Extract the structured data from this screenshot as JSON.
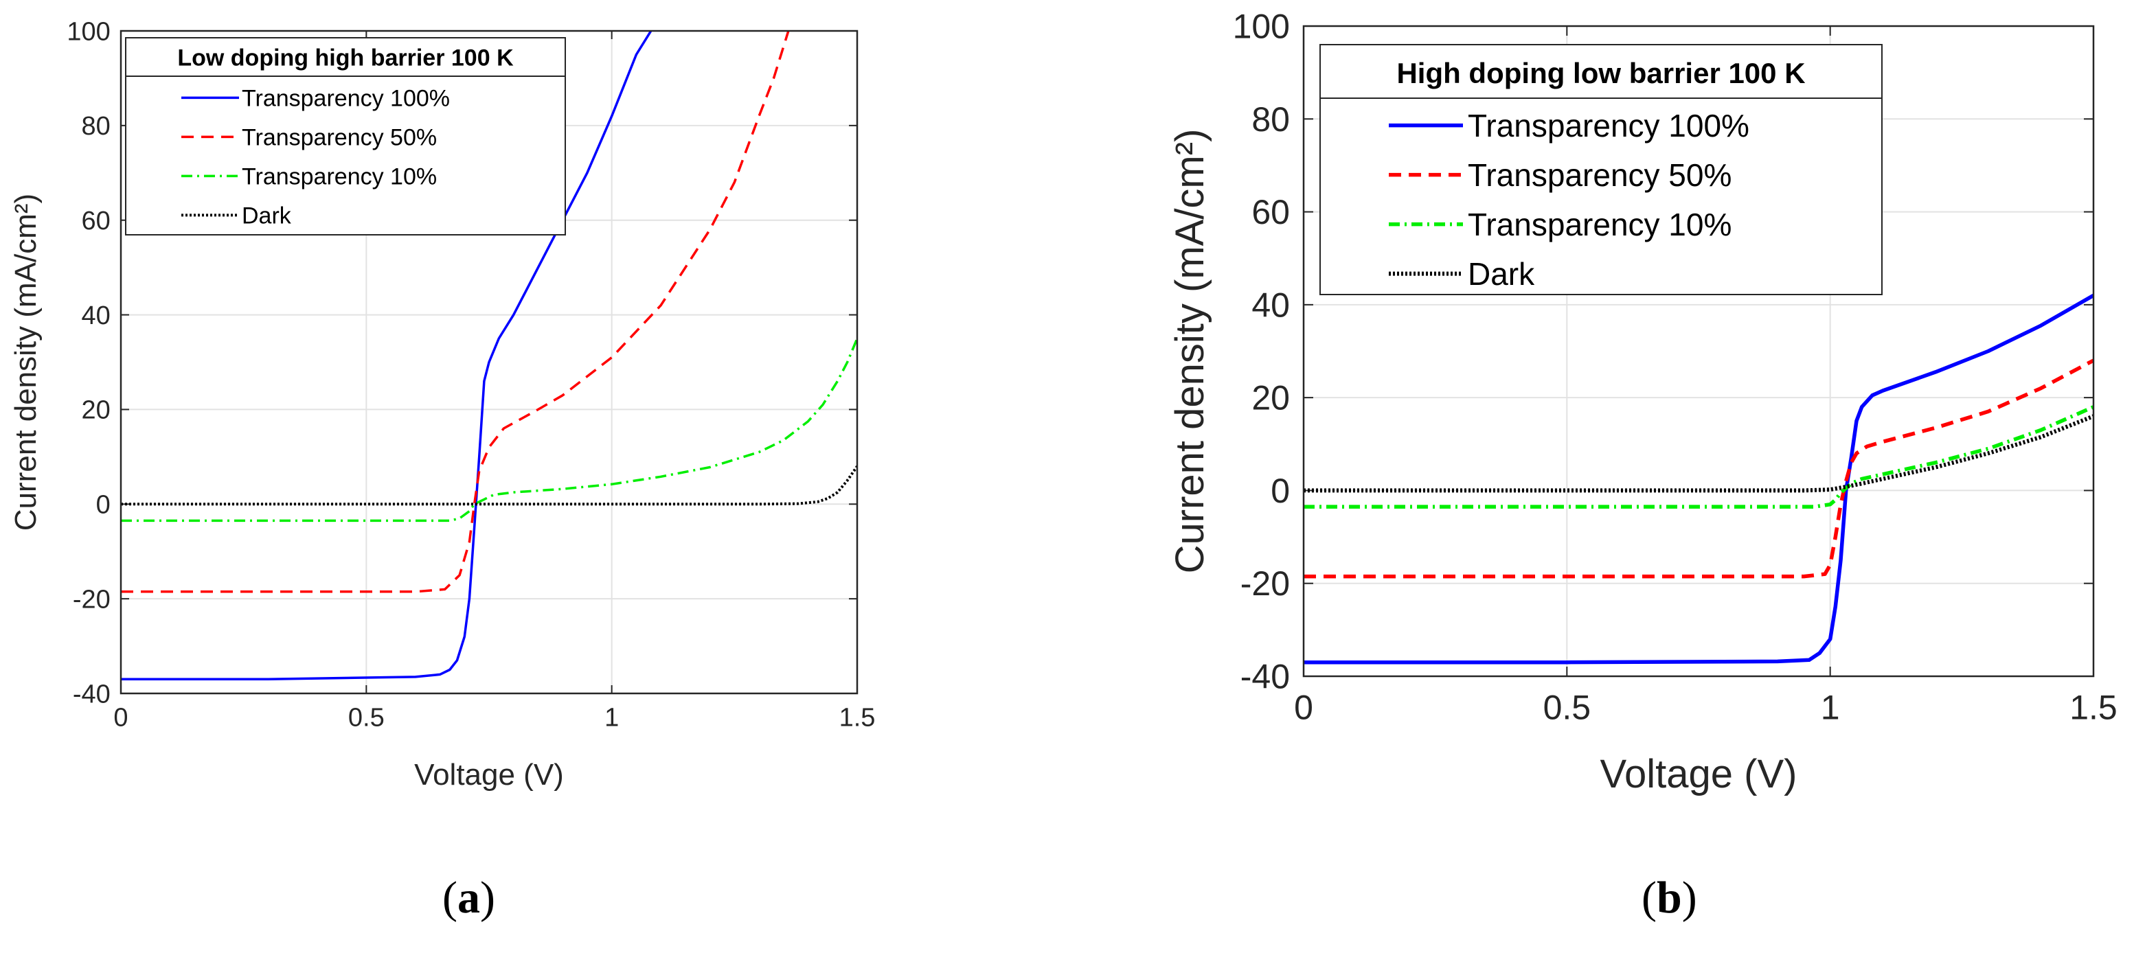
{
  "chart_data": [
    {
      "type": "line",
      "panel_label": "a",
      "xlabel": "Voltage (V)",
      "ylabel": "Current density (mA/cm²)",
      "xlim": [
        0,
        1.5
      ],
      "ylim": [
        -40,
        100
      ],
      "xticks": [
        0,
        0.5,
        1,
        1.5
      ],
      "xtick_labels": [
        "0",
        "0.5",
        "1",
        "1.5"
      ],
      "yticks": [
        -40,
        -20,
        0,
        20,
        40,
        60,
        80,
        100
      ],
      "ytick_labels": [
        "-40",
        "-20",
        "0",
        "20",
        "40",
        "60",
        "80",
        "100"
      ],
      "grid": true,
      "legend_title": "Low doping high barrier 100 K",
      "legend_position": "top-left",
      "series": [
        {
          "name": "Transparency 100%",
          "color": "#0000ff",
          "dash": "solid",
          "x": [
            0,
            0.3,
            0.6,
            0.65,
            0.67,
            0.685,
            0.7,
            0.71,
            0.72,
            0.73,
            0.74,
            0.75,
            0.77,
            0.8,
            0.85,
            0.9,
            0.95,
            1.0,
            1.05,
            1.08
          ],
          "y": [
            -37,
            -37,
            -36.5,
            -36,
            -35,
            -33,
            -28,
            -20,
            -5,
            10,
            26,
            30,
            35,
            40,
            50,
            60,
            70,
            82,
            95,
            100
          ]
        },
        {
          "name": "Transparency 50%",
          "color": "#ff0000",
          "dash": "dashed",
          "x": [
            0,
            0.3,
            0.6,
            0.66,
            0.69,
            0.71,
            0.72,
            0.73,
            0.75,
            0.78,
            0.85,
            0.9,
            1.0,
            1.1,
            1.2,
            1.25,
            1.3,
            1.33,
            1.36
          ],
          "y": [
            -18.5,
            -18.5,
            -18.5,
            -18,
            -15,
            -8,
            0,
            7,
            12,
            16,
            20,
            23,
            31,
            42,
            58,
            68,
            82,
            90,
            100
          ]
        },
        {
          "name": "Transparency 10%",
          "color": "#00ee00",
          "dash": "dashdot",
          "x": [
            0,
            0.3,
            0.6,
            0.67,
            0.69,
            0.71,
            0.72,
            0.74,
            0.76,
            0.8,
            0.9,
            1.0,
            1.1,
            1.2,
            1.3,
            1.35,
            1.4,
            1.43,
            1.46,
            1.48,
            1.5
          ],
          "y": [
            -3.5,
            -3.5,
            -3.5,
            -3.5,
            -3,
            -1.5,
            0,
            1,
            2,
            2.5,
            3.2,
            4.2,
            5.8,
            7.8,
            11,
            13.5,
            17.5,
            21,
            26,
            30,
            35
          ]
        },
        {
          "name": "Dark",
          "color": "#000000",
          "dash": "dotted",
          "x": [
            0,
            0.5,
            1.0,
            1.3,
            1.38,
            1.42,
            1.44,
            1.46,
            1.48,
            1.5
          ],
          "y": [
            0,
            0,
            0,
            0,
            0.1,
            0.5,
            1.2,
            2.5,
            5,
            8
          ]
        }
      ]
    },
    {
      "type": "line",
      "panel_label": "b",
      "xlabel": "Voltage (V)",
      "ylabel": "Current density (mA/cm²)",
      "xlim": [
        0,
        1.5
      ],
      "ylim": [
        -40,
        100
      ],
      "xticks": [
        0,
        0.5,
        1,
        1.5
      ],
      "xtick_labels": [
        "0",
        "0.5",
        "1",
        "1.5"
      ],
      "yticks": [
        -40,
        -20,
        0,
        20,
        40,
        60,
        80,
        100
      ],
      "ytick_labels": [
        "-40",
        "-20",
        "0",
        "20",
        "40",
        "60",
        "80",
        "100"
      ],
      "grid": true,
      "legend_title": "High doping low barrier 100 K",
      "legend_position": "top-left",
      "series": [
        {
          "name": "Transparency 100%",
          "color": "#0000ff",
          "dash": "solid",
          "x": [
            0,
            0.5,
            0.9,
            0.96,
            0.98,
            1.0,
            1.01,
            1.02,
            1.03,
            1.04,
            1.05,
            1.06,
            1.08,
            1.1,
            1.2,
            1.3,
            1.4,
            1.5
          ],
          "y": [
            -37,
            -37,
            -36.8,
            -36.5,
            -35,
            -32,
            -25,
            -15,
            0,
            7,
            15,
            18,
            20.5,
            21.5,
            25.5,
            30,
            35.5,
            42
          ]
        },
        {
          "name": "Transparency 50%",
          "color": "#ff0000",
          "dash": "dashed",
          "x": [
            0,
            0.5,
            0.95,
            0.99,
            1.0,
            1.01,
            1.02,
            1.03,
            1.04,
            1.05,
            1.07,
            1.1,
            1.2,
            1.3,
            1.4,
            1.5
          ],
          "y": [
            -18.5,
            -18.5,
            -18.5,
            -18,
            -16,
            -10,
            -3,
            2,
            6,
            8,
            9.5,
            10.5,
            13.5,
            17,
            22,
            28
          ]
        },
        {
          "name": "Transparency 10%",
          "color": "#00ee00",
          "dash": "dashdot",
          "x": [
            0,
            0.5,
            0.97,
            1.0,
            1.01,
            1.02,
            1.03,
            1.04,
            1.06,
            1.1,
            1.2,
            1.3,
            1.4,
            1.5
          ],
          "y": [
            -3.5,
            -3.5,
            -3.5,
            -3,
            -2,
            -0.5,
            0.5,
            1.5,
            2.5,
            3.5,
            6,
            9,
            13,
            18
          ]
        },
        {
          "name": "Dark",
          "color": "#000000",
          "dash": "dotted",
          "x": [
            0,
            0.5,
            0.95,
            1.0,
            1.03,
            1.06,
            1.1,
            1.2,
            1.3,
            1.4,
            1.5
          ],
          "y": [
            0,
            0,
            0,
            0.2,
            0.8,
            1.5,
            2.5,
            5,
            8,
            11.5,
            16
          ]
        }
      ]
    }
  ]
}
